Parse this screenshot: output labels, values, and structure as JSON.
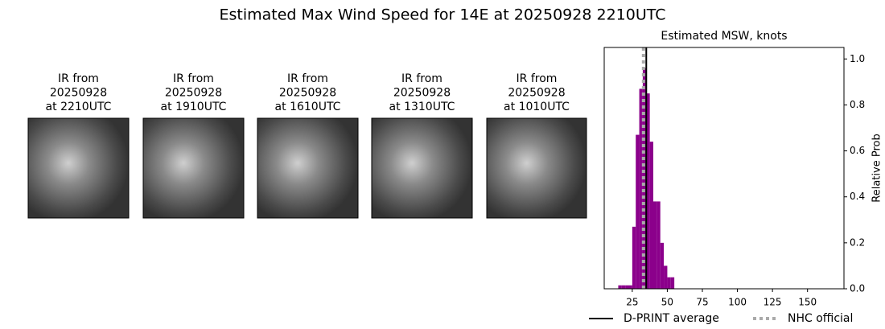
{
  "title": "Estimated Max Wind Speed for 14E at 20250928 2210UTC",
  "panels": [
    {
      "lines": [
        "IR from",
        "20250928",
        "at 2210UTC"
      ]
    },
    {
      "lines": [
        "IR from",
        "20250928",
        "at 1910UTC"
      ]
    },
    {
      "lines": [
        "IR from",
        "20250928",
        "at 1610UTC"
      ]
    },
    {
      "lines": [
        "IR from",
        "20250928",
        "at 1310UTC"
      ]
    },
    {
      "lines": [
        "IR from",
        "20250928",
        "at 1010UTC"
      ]
    }
  ],
  "chart_data": {
    "type": "histogram",
    "title": "Estimated MSW, knots",
    "ylabel": "Relative Prob",
    "bins": [
      15,
      17.5,
      20,
      22.5,
      25,
      27.5,
      30,
      32.5,
      35,
      37.5,
      40,
      42.5,
      45,
      47.5,
      50,
      52.5,
      55
    ],
    "values": [
      0.015,
      0.015,
      0.015,
      0.015,
      0.27,
      0.67,
      0.87,
      0.96,
      0.85,
      0.64,
      0.38,
      0.38,
      0.2,
      0.1,
      0.05,
      0.05
    ],
    "color": "#8b008b",
    "xlim": [
      5,
      176
    ],
    "xticks": [
      25,
      50,
      75,
      100,
      125,
      150
    ],
    "ylim": [
      0,
      1.05
    ],
    "yticks": [
      {
        "value": 0,
        "label": "0.0"
      },
      0.2,
      0.4,
      0.6,
      0.8,
      {
        "value": 1,
        "label": "1.0"
      }
    ],
    "reference_lines": [
      {
        "name": "D-PRINT average",
        "value": 35,
        "color": "#000000",
        "style": "solid"
      },
      {
        "name": "NHC official",
        "value": 33,
        "color": "#aaaaaa",
        "style": "dotted"
      }
    ]
  }
}
